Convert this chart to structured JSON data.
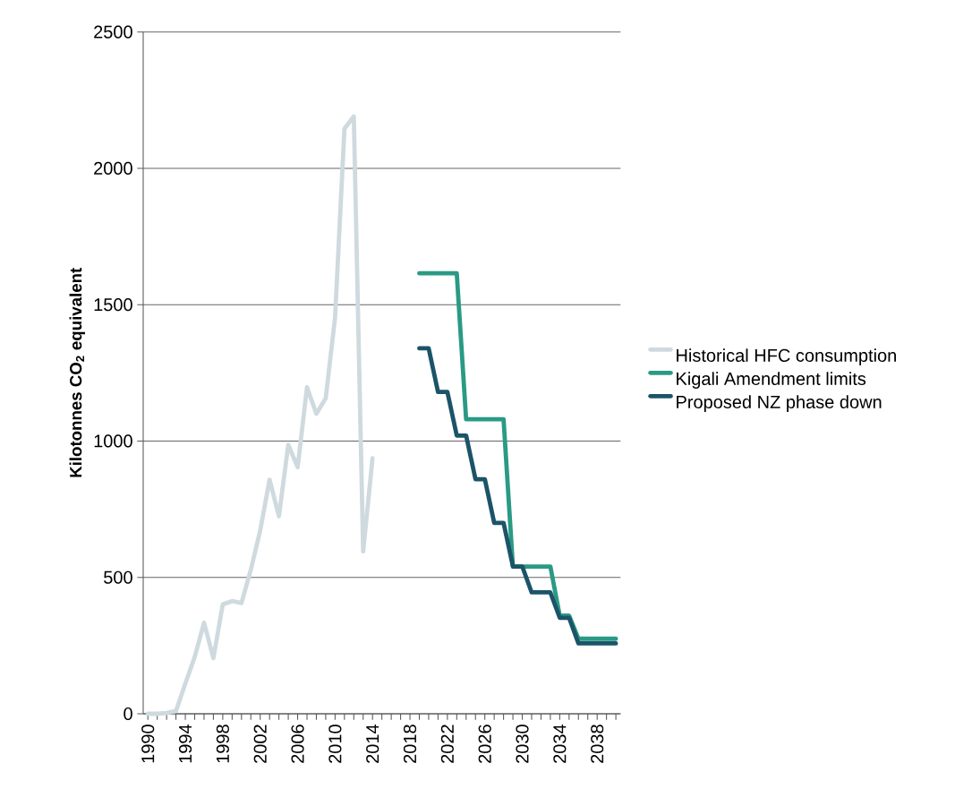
{
  "chart_data": {
    "type": "line",
    "ylabel": "Kilotonnes CO$_{2}$ equivalent",
    "categories": [
      "1990",
      null,
      null,
      null,
      "1994",
      null,
      null,
      null,
      "1998",
      null,
      null,
      null,
      "2002",
      null,
      null,
      null,
      "2006",
      null,
      null,
      null,
      "2010",
      null,
      null,
      null,
      "2014",
      null,
      null,
      null,
      "2018",
      null,
      null,
      null,
      "2022",
      null,
      null,
      null,
      "2026",
      null,
      null,
      null,
      "2030",
      null,
      null,
      null,
      "2034",
      null,
      null,
      null,
      "2038",
      null,
      null
    ],
    "series": [
      {
        "name": "Historical HFC consumption",
        "color": "#cfdadf",
        "values": [
          0,
          0,
          3,
          10,
          111,
          208,
          334,
          204,
          401,
          413,
          406,
          528,
          672,
          858,
          724,
          986,
          904,
          1197,
          1100,
          1157,
          1454,
          2145,
          2190,
          595,
          937,
          null,
          null,
          null,
          null,
          null,
          null,
          null,
          null,
          null,
          null,
          null,
          null,
          null,
          null,
          null,
          null,
          null,
          null,
          null,
          null,
          null,
          null,
          null,
          null,
          null,
          null
        ]
      },
      {
        "name": "Kigali Amendment limits",
        "color": "#2a9a84",
        "values": [
          null,
          null,
          null,
          null,
          null,
          null,
          null,
          null,
          null,
          null,
          null,
          null,
          null,
          null,
          null,
          null,
          null,
          null,
          null,
          null,
          null,
          null,
          null,
          null,
          null,
          null,
          null,
          null,
          null,
          1615,
          1615,
          1615,
          1615,
          1615,
          1080,
          1080,
          1080,
          1080,
          1080,
          540,
          540,
          540,
          540,
          540,
          360,
          360,
          275,
          275,
          275,
          275,
          275
        ]
      },
      {
        "name": "Proposed NZ phase down",
        "color": "#1b5468",
        "values": [
          null,
          null,
          null,
          null,
          null,
          null,
          null,
          null,
          null,
          null,
          null,
          null,
          null,
          null,
          null,
          null,
          null,
          null,
          null,
          null,
          null,
          null,
          null,
          null,
          null,
          null,
          null,
          null,
          null,
          1340,
          1340,
          1180,
          1180,
          1020,
          1020,
          860,
          860,
          700,
          700,
          540,
          540,
          445,
          445,
          445,
          352,
          352,
          258,
          258,
          258,
          258,
          258
        ]
      }
    ],
    "ylim": [
      0,
      2500
    ],
    "yticks": [
      0,
      500,
      1000,
      1500,
      2000,
      2500
    ],
    "grid": "y",
    "legend": "right",
    "marker": "none",
    "line_style": "solid"
  }
}
